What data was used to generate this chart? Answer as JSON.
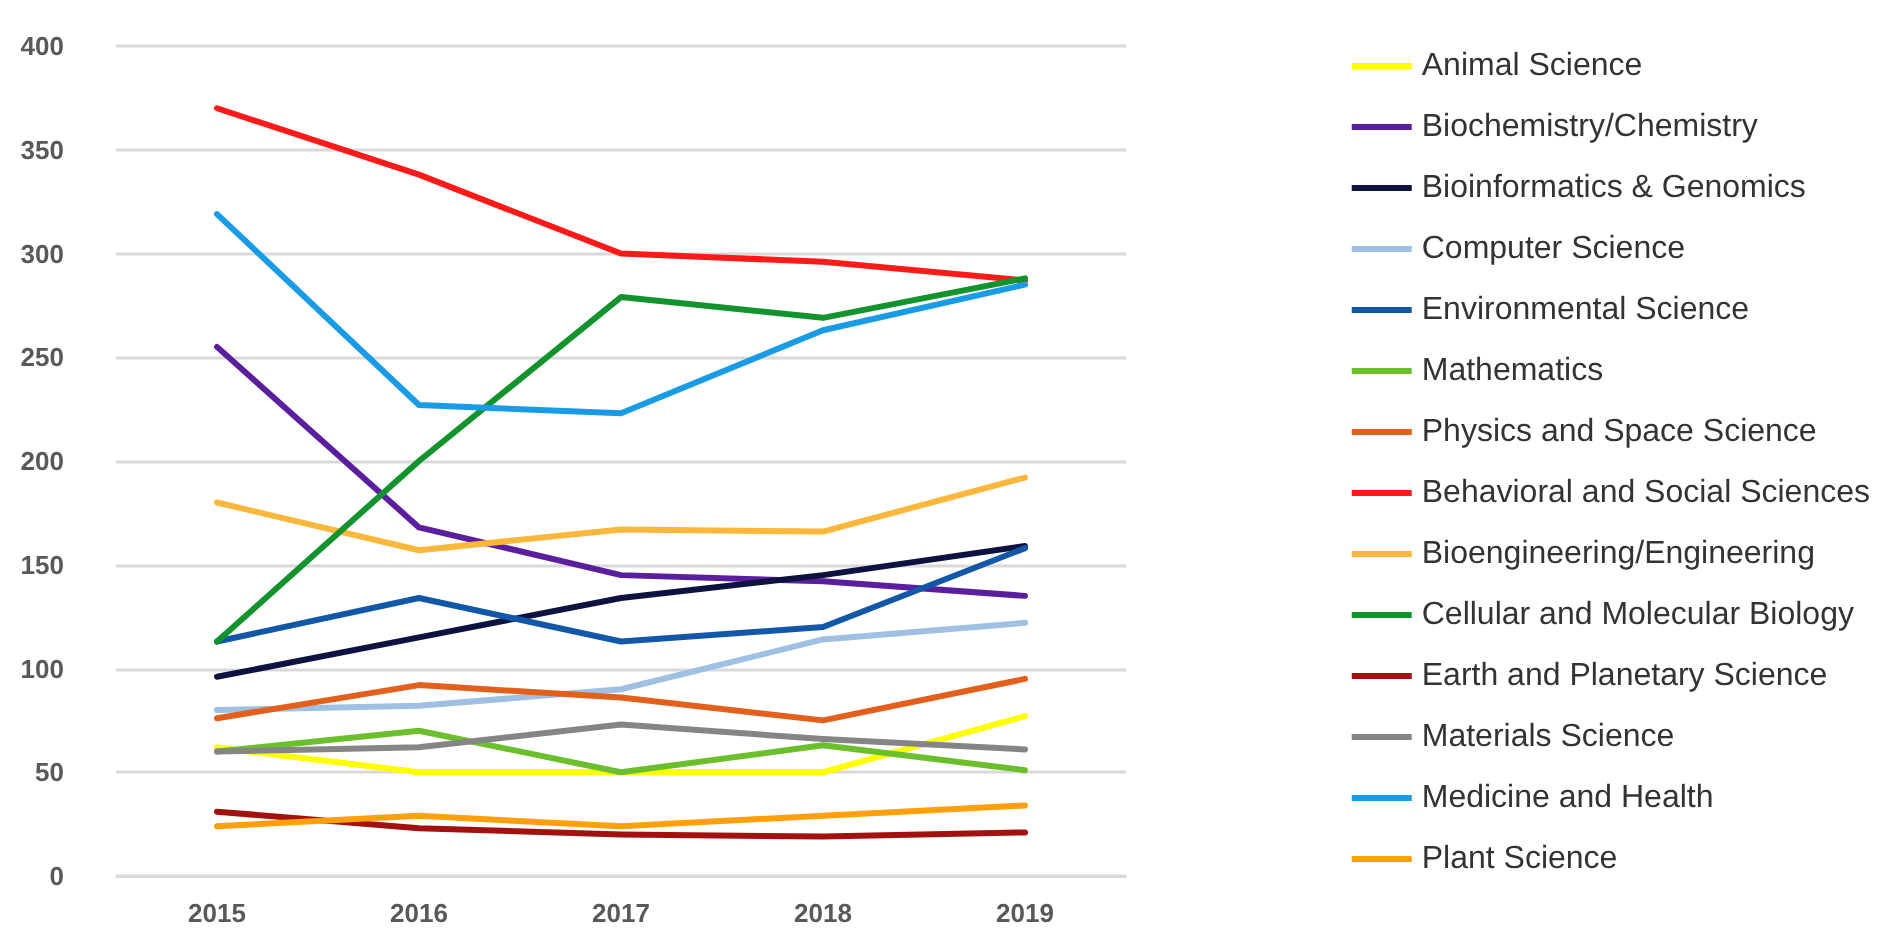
{
  "chart_data": {
    "type": "line",
    "categories": [
      "2015",
      "2016",
      "2017",
      "2018",
      "2019"
    ],
    "ylim": [
      0,
      400
    ],
    "yticks": [
      0,
      50,
      100,
      150,
      200,
      250,
      300,
      350,
      400
    ],
    "grid": "y",
    "legend": "right",
    "marker": "none",
    "line_style": "solid",
    "series": [
      {
        "name": "Animal Science",
        "color": "#ffff00",
        "values": [
          62,
          50,
          50,
          50,
          77
        ]
      },
      {
        "name": "Biochemistry/Chemistry",
        "color": "#5b1f9e",
        "values": [
          255,
          168,
          145,
          142,
          135
        ]
      },
      {
        "name": "Bioinformatics & Genomics",
        "color": "#0d1240",
        "values": [
          96,
          115,
          134,
          145,
          159
        ]
      },
      {
        "name": "Computer Science",
        "color": "#9fbfe3",
        "values": [
          80,
          82,
          90,
          114,
          122
        ]
      },
      {
        "name": "Environmental Science",
        "color": "#1357a8",
        "values": [
          113,
          134,
          113,
          120,
          158
        ]
      },
      {
        "name": "Mathematics",
        "color": "#6cbf2c",
        "values": [
          60,
          70,
          50,
          63,
          51
        ]
      },
      {
        "name": "Physics and Space Science",
        "color": "#e2601c",
        "values": [
          76,
          92,
          86,
          75,
          95
        ]
      },
      {
        "name": "Behavioral and Social Sciences",
        "color": "#ff1a1a",
        "values": [
          370,
          338,
          300,
          296,
          287
        ]
      },
      {
        "name": "Bioengineering/Engineering",
        "color": "#fbb63c",
        "values": [
          180,
          157,
          167,
          166,
          192
        ]
      },
      {
        "name": "Cellular and Molecular Biology",
        "color": "#12932e",
        "values": [
          113,
          200,
          279,
          269,
          288
        ]
      },
      {
        "name": "Earth and Planetary Science",
        "color": "#a31010",
        "values": [
          31,
          23,
          20,
          19,
          21
        ]
      },
      {
        "name": "Materials Science",
        "color": "#858585",
        "values": [
          60,
          62,
          73,
          66,
          61
        ]
      },
      {
        "name": "Medicine and Health",
        "color": "#1a9be6",
        "values": [
          319,
          227,
          223,
          263,
          285
        ]
      },
      {
        "name": "Plant Science",
        "color": "#ff9f0a",
        "values": [
          24,
          29,
          24,
          29,
          34
        ]
      }
    ]
  }
}
